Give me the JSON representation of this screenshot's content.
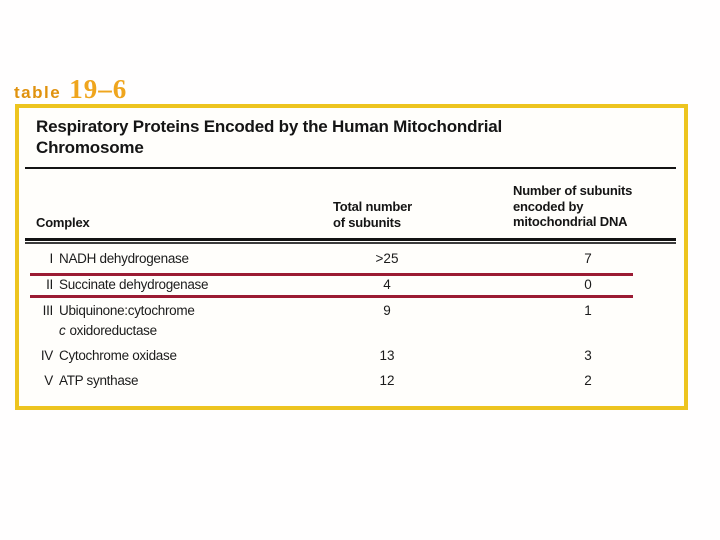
{
  "label": {
    "word": "table",
    "number": "19–6"
  },
  "table": {
    "title_line1": "Respiratory Proteins Encoded by the Human Mitochondrial",
    "title_line2": "Chromosome",
    "columns": {
      "complex": "Complex",
      "total": [
        "Total number",
        "of subunits"
      ],
      "encoded": [
        "Number of subunits",
        "encoded by",
        "mitochondrial DNA"
      ]
    },
    "rows": [
      {
        "numeral": "I",
        "name": "NADH dehydrogenase",
        "total": ">25",
        "encoded": "7",
        "highlighted": false
      },
      {
        "numeral": "II",
        "name": "Succinate dehydrogenase",
        "total": "4",
        "encoded": "0",
        "highlighted": true
      },
      {
        "numeral": "III",
        "name": "Ubiquinone:cytochrome",
        "name_line2_italic": "c",
        "name_line2": "oxidoreductase",
        "total": "9",
        "encoded": "1",
        "highlighted": false
      },
      {
        "numeral": "IV",
        "name": "Cytochrome oxidase",
        "total": "13",
        "encoded": "3",
        "highlighted": false
      },
      {
        "numeral": "V",
        "name": "ATP synthase",
        "total": "12",
        "encoded": "2",
        "highlighted": false
      }
    ]
  },
  "colors": {
    "label_orange": "#E59A14",
    "box_border_yellow": "#EDC41F",
    "highlight_red": "#9B1B33",
    "rule_black": "#141414",
    "background": "#FFFFFF"
  }
}
